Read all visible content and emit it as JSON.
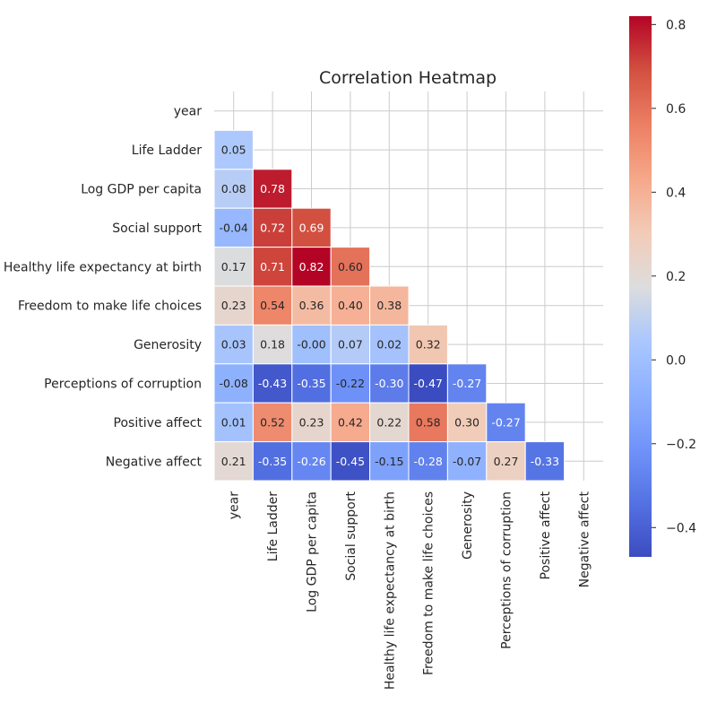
{
  "chart_data": {
    "type": "heatmap",
    "title": "Correlation Heatmap",
    "row_labels": [
      "year",
      "Life Ladder",
      "Log GDP per capita",
      "Social support",
      "Healthy life expectancy at birth",
      "Freedom to make life choices",
      "Generosity",
      "Perceptions of corruption",
      "Positive affect",
      "Negative affect"
    ],
    "col_labels": [
      "year",
      "Life Ladder",
      "Log GDP per capita",
      "Social support",
      "Healthy life expectancy at birth",
      "Freedom to make life choices",
      "Generosity",
      "Perceptions of corruption",
      "Positive affect",
      "Negative affect"
    ],
    "values": [
      [
        null,
        null,
        null,
        null,
        null,
        null,
        null,
        null,
        null,
        null
      ],
      [
        0.05,
        null,
        null,
        null,
        null,
        null,
        null,
        null,
        null,
        null
      ],
      [
        0.08,
        0.78,
        null,
        null,
        null,
        null,
        null,
        null,
        null,
        null
      ],
      [
        -0.04,
        0.72,
        0.69,
        null,
        null,
        null,
        null,
        null,
        null,
        null
      ],
      [
        0.17,
        0.71,
        0.82,
        0.6,
        null,
        null,
        null,
        null,
        null,
        null
      ],
      [
        0.23,
        0.54,
        0.36,
        0.4,
        0.38,
        null,
        null,
        null,
        null,
        null
      ],
      [
        0.03,
        0.18,
        -0.0,
        0.07,
        0.02,
        0.32,
        null,
        null,
        null,
        null
      ],
      [
        -0.08,
        -0.43,
        -0.35,
        -0.22,
        -0.3,
        -0.47,
        -0.27,
        null,
        null,
        null
      ],
      [
        0.01,
        0.52,
        0.23,
        0.42,
        0.22,
        0.58,
        0.3,
        -0.27,
        null,
        null
      ],
      [
        0.21,
        -0.35,
        -0.26,
        -0.45,
        -0.15,
        -0.28,
        -0.07,
        0.27,
        -0.33,
        null
      ]
    ],
    "value_labels": [
      [
        null,
        null,
        null,
        null,
        null,
        null,
        null,
        null,
        null,
        null
      ],
      [
        "0.05",
        null,
        null,
        null,
        null,
        null,
        null,
        null,
        null,
        null
      ],
      [
        "0.08",
        "0.78",
        null,
        null,
        null,
        null,
        null,
        null,
        null,
        null
      ],
      [
        "-0.04",
        "0.72",
        "0.69",
        null,
        null,
        null,
        null,
        null,
        null,
        null
      ],
      [
        "0.17",
        "0.71",
        "0.82",
        "0.60",
        null,
        null,
        null,
        null,
        null,
        null
      ],
      [
        "0.23",
        "0.54",
        "0.36",
        "0.40",
        "0.38",
        null,
        null,
        null,
        null,
        null
      ],
      [
        "0.03",
        "0.18",
        "-0.00",
        "0.07",
        "0.02",
        "0.32",
        null,
        null,
        null,
        null
      ],
      [
        "-0.08",
        "-0.43",
        "-0.35",
        "-0.22",
        "-0.30",
        "-0.47",
        "-0.27",
        null,
        null,
        null
      ],
      [
        "0.01",
        "0.52",
        "0.23",
        "0.42",
        "0.22",
        "0.58",
        "0.30",
        "-0.27",
        null,
        null
      ],
      [
        "0.21",
        "-0.35",
        "-0.26",
        "-0.45",
        "-0.15",
        "-0.28",
        "-0.07",
        "0.27",
        "-0.33",
        null
      ]
    ],
    "mask": "upper-triangle",
    "colormap": "coolwarm",
    "vmin": -0.47,
    "vmax": 0.82,
    "colorbar": {
      "ticks": [
        -0.4,
        -0.2,
        0.0,
        0.2,
        0.4,
        0.6,
        0.8
      ],
      "tick_labels": [
        "−0.4",
        "−0.2",
        "0.0",
        "0.2",
        "0.4",
        "0.6",
        "0.8"
      ],
      "placement": "right"
    },
    "grid": true,
    "colors": {
      "low": "#3b4cc0",
      "mid": "#dddddd",
      "high": "#b40426",
      "grid": "#cccccc",
      "text": "#262626"
    }
  }
}
